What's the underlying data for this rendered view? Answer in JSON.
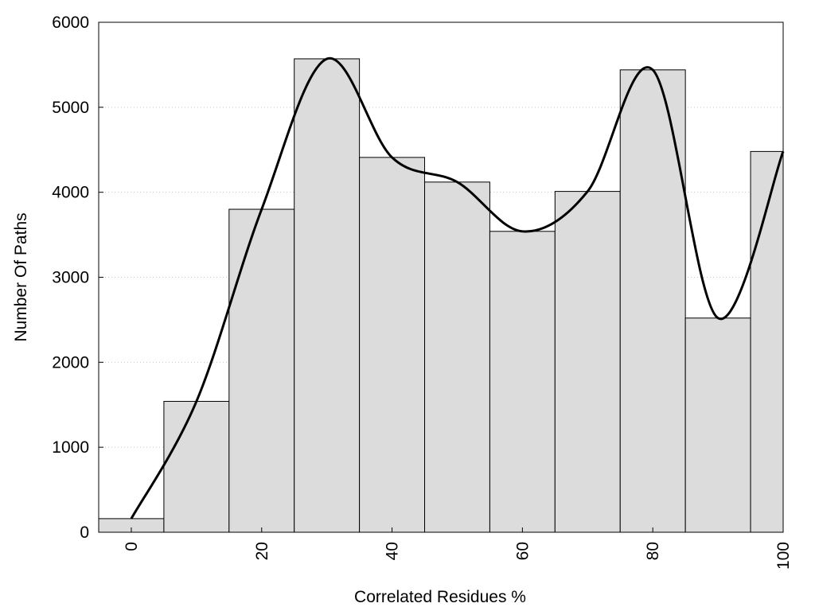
{
  "chart_data": {
    "type": "bar",
    "title": "",
    "xlabel": "Correlated Residues %",
    "ylabel": "Number Of Paths",
    "x": [
      0,
      10,
      20,
      30,
      40,
      50,
      60,
      70,
      80,
      90,
      100
    ],
    "values": [
      160,
      1540,
      3800,
      5570,
      4410,
      4120,
      3540,
      4010,
      5440,
      2520,
      4480
    ],
    "bin_width": 10,
    "xlim": [
      -5,
      100
    ],
    "ylim": [
      0,
      6000
    ],
    "x_ticks": [
      0,
      20,
      40,
      60,
      80,
      100
    ],
    "y_ticks": [
      0,
      1000,
      2000,
      3000,
      4000,
      5000,
      6000
    ],
    "x_tick_labels": [
      "0",
      "20",
      "40",
      "60",
      "80",
      "100"
    ],
    "y_tick_labels": [
      "0",
      "1000",
      "2000",
      "3000",
      "4000",
      "5000",
      "6000"
    ],
    "grid": "horizontal dotted",
    "bar_color": "#dcdcdc",
    "curve": {
      "description": "smooth fitted line through bar tops",
      "color": "#000000"
    }
  }
}
